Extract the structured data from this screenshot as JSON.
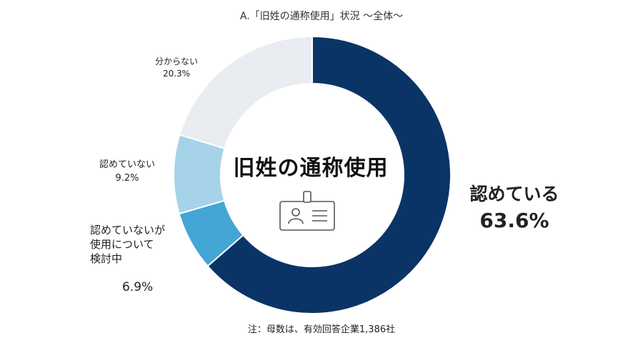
{
  "chart_data": {
    "type": "pie",
    "variant": "donut",
    "title": "A.「旧姓の通称使用」状況 ～全体～",
    "center_label": "旧姓の通称使用",
    "center_icon": "id-badge-icon",
    "slices": [
      {
        "label": "認めている",
        "value": 63.6,
        "display": "63.6%",
        "color": "#0a3466"
      },
      {
        "label": "認めていないが\n使用について\n検討中",
        "value": 6.9,
        "display": "6.9%",
        "color": "#43a6d4"
      },
      {
        "label": "認めていない",
        "value": 9.2,
        "display": "9.2%",
        "color": "#a6d3ea"
      },
      {
        "label": "分からない",
        "value": 20.3,
        "display": "20.3%",
        "color": "#e9ecf0"
      }
    ],
    "note": "注：母数は、有効回答企業1,386社"
  }
}
